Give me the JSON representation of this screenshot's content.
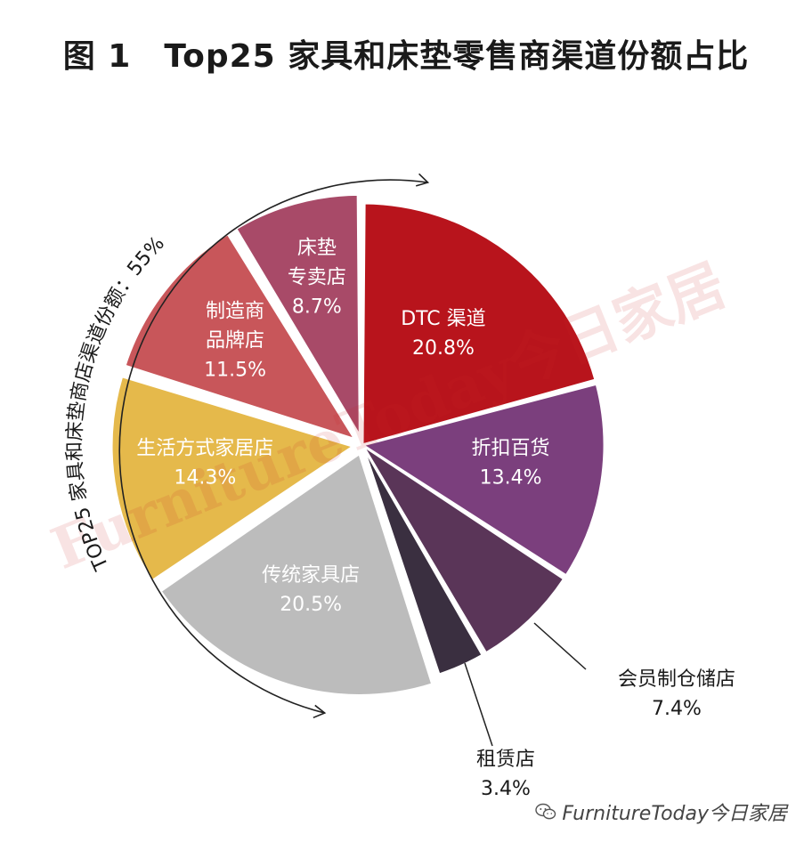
{
  "chart_data": {
    "type": "pie",
    "title": "图 1　Top25 家具和床垫零售商渠道份额占比",
    "slices": [
      {
        "label": "DTC 渠道",
        "value": 20.8,
        "value_label": "20.8%",
        "color": "#b8141c",
        "label_pos": "inside"
      },
      {
        "label": "折扣百货",
        "value": 13.4,
        "value_label": "13.4%",
        "color": "#7b3f7d",
        "label_pos": "inside"
      },
      {
        "label": "会员制仓储店",
        "value": 7.4,
        "value_label": "7.4%",
        "color": "#5a3558",
        "label_pos": "outside"
      },
      {
        "label": "租赁店",
        "value": 3.4,
        "value_label": "3.4%",
        "color": "#3a2f40",
        "label_pos": "outside"
      },
      {
        "label": "传统家具店",
        "value": 20.5,
        "value_label": "20.5%",
        "color": "#bcbcbc",
        "label_pos": "inside"
      },
      {
        "label": "生活方式家居店",
        "value": 14.3,
        "value_label": "14.3%",
        "color": "#e5b94b",
        "label_pos": "inside"
      },
      {
        "label": "制造商品牌店",
        "value": 11.5,
        "value_label": "11.5%",
        "color": "#c8565a",
        "label_pos": "inside"
      },
      {
        "label": "床垫专卖店",
        "value": 8.7,
        "value_label": "8.7%",
        "color": "#a84a68",
        "label_pos": "inside"
      }
    ],
    "bracket_annotation": "TOP25 家具和床垫商店渠道份额：55%",
    "watermark": "FurnitureToday今日家居"
  },
  "footer": {
    "icon": "wechat-icon",
    "text": "FurnitureToday今日家居"
  }
}
